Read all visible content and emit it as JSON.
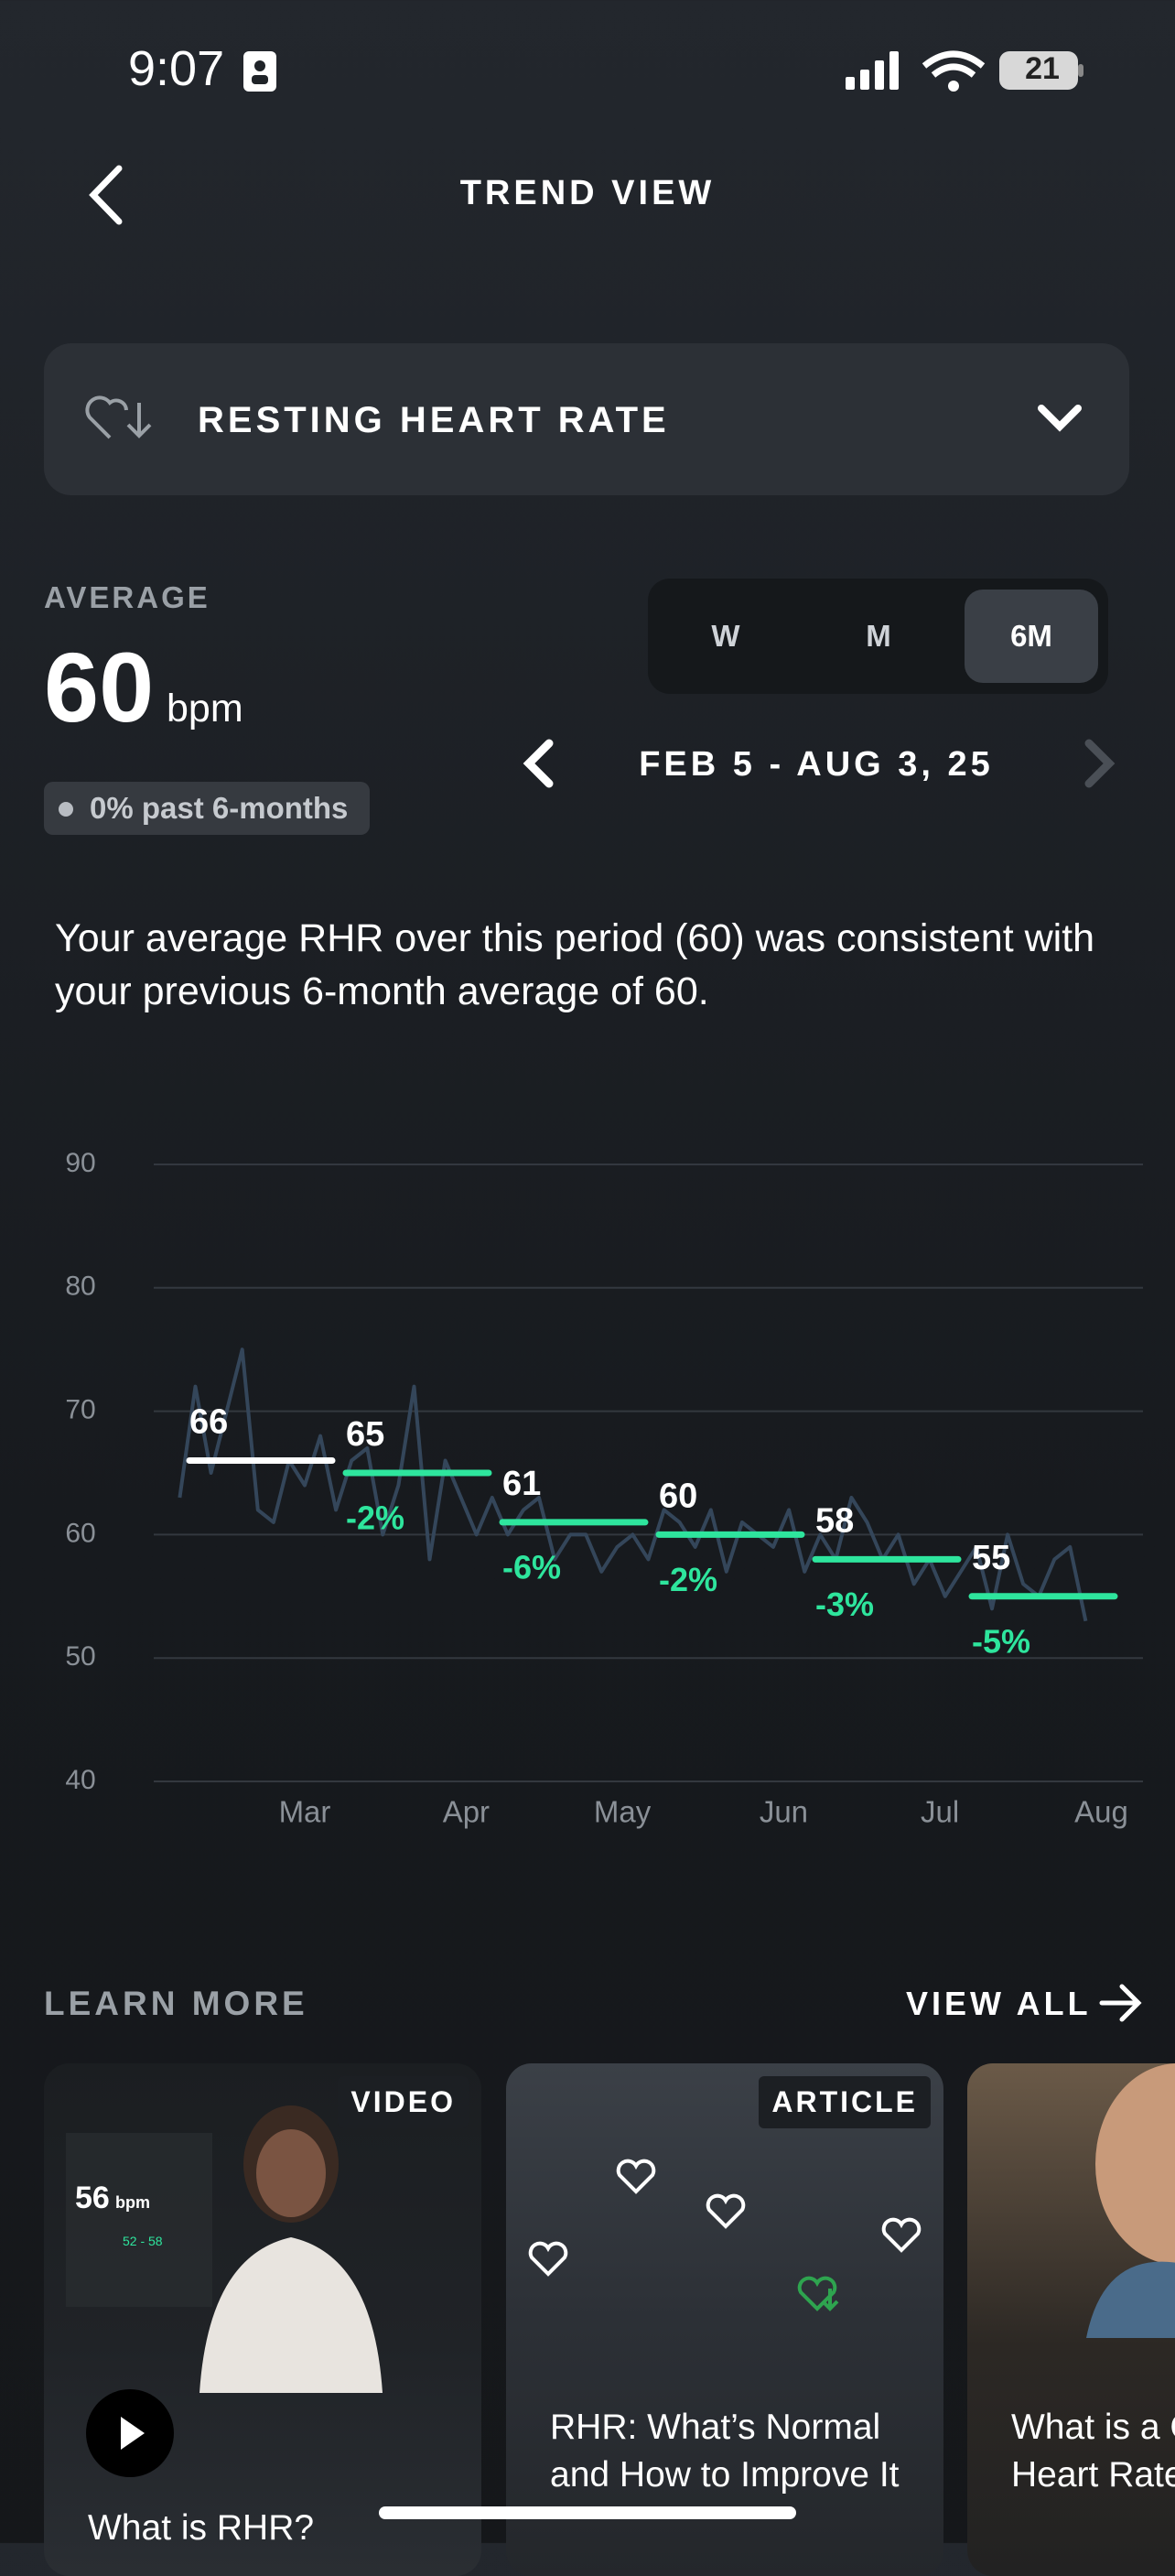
{
  "status_bar": {
    "time": "9:07",
    "battery": "21"
  },
  "header": {
    "title": "TREND VIEW"
  },
  "metric_selector": {
    "label": "RESTING HEART RATE"
  },
  "average": {
    "label": "AVERAGE",
    "value": "60",
    "unit": "bpm",
    "change": "0% past 6-months"
  },
  "range_tabs": [
    "W",
    "M",
    "6M"
  ],
  "selected_tab": "6M",
  "date_range": "FEB 5 - AUG 3, 25",
  "summary": "Your average RHR over this period (60) was consistent with your previous 6-month average of 60.",
  "chart_data": {
    "type": "line",
    "x": [
      0,
      3,
      6,
      9,
      12,
      15,
      18,
      21,
      24,
      27,
      30,
      33,
      36,
      39,
      42,
      45,
      48,
      51,
      54,
      57,
      60,
      63,
      66,
      69,
      72,
      75,
      78,
      81,
      84,
      87,
      90,
      93,
      96,
      99,
      102,
      105,
      108,
      111,
      114,
      117,
      120,
      123,
      126,
      129,
      132,
      135,
      138,
      141,
      144,
      147,
      150,
      153,
      156,
      159,
      162,
      165,
      168,
      171,
      174
    ],
    "values": [
      63,
      72,
      65,
      70,
      75,
      62,
      61,
      66,
      64,
      68,
      62,
      66,
      67,
      60,
      64,
      72,
      58,
      66,
      63,
      60,
      63,
      60,
      62,
      63,
      58,
      60,
      60,
      57,
      59,
      60,
      58,
      62,
      61,
      59,
      62,
      57,
      61,
      60,
      59,
      62,
      57,
      60,
      58,
      63,
      61,
      58,
      60,
      56,
      58,
      55,
      57,
      59,
      54,
      60,
      56,
      55,
      58,
      59,
      53
    ],
    "color": "#34465a",
    "monthly_averages": {
      "values": [
        66,
        65,
        61,
        60,
        58,
        55
      ],
      "colors": [
        "#ffffff",
        "#2ee59d",
        "#2ee59d",
        "#2ee59d",
        "#2ee59d",
        "#2ee59d"
      ],
      "change_values": [
        null,
        -2,
        -6,
        -2,
        -3,
        -5
      ],
      "change_labels": [
        null,
        "-2%",
        "-6%",
        "-2%",
        "-3%",
        "-5%"
      ]
    },
    "xlim": [
      -5,
      185
    ],
    "xticks": [
      {
        "value": 24,
        "label": "Mar"
      },
      {
        "value": 55,
        "label": "Apr"
      },
      {
        "value": 85,
        "label": "May"
      },
      {
        "value": 116,
        "label": "Jun"
      },
      {
        "value": 146,
        "label": "Jul"
      },
      {
        "value": 177,
        "label": "Aug"
      }
    ],
    "ylim": [
      40,
      90
    ],
    "yticks": [
      40,
      50,
      60,
      70,
      80,
      90
    ],
    "grid": true
  },
  "learn_more": {
    "title": "LEARN MORE",
    "view_all": "VIEW ALL",
    "cards": [
      {
        "tag": "VIDEO",
        "title": "What is RHR?",
        "thumb_value": "56",
        "thumb_unit": "bpm",
        "thumb_range": "52 - 58"
      },
      {
        "tag": "ARTICLE",
        "title": "RHR: What’s Normal and How to Improve It"
      },
      {
        "title": "What is a Good Resting Heart Rate by Age and"
      }
    ]
  }
}
